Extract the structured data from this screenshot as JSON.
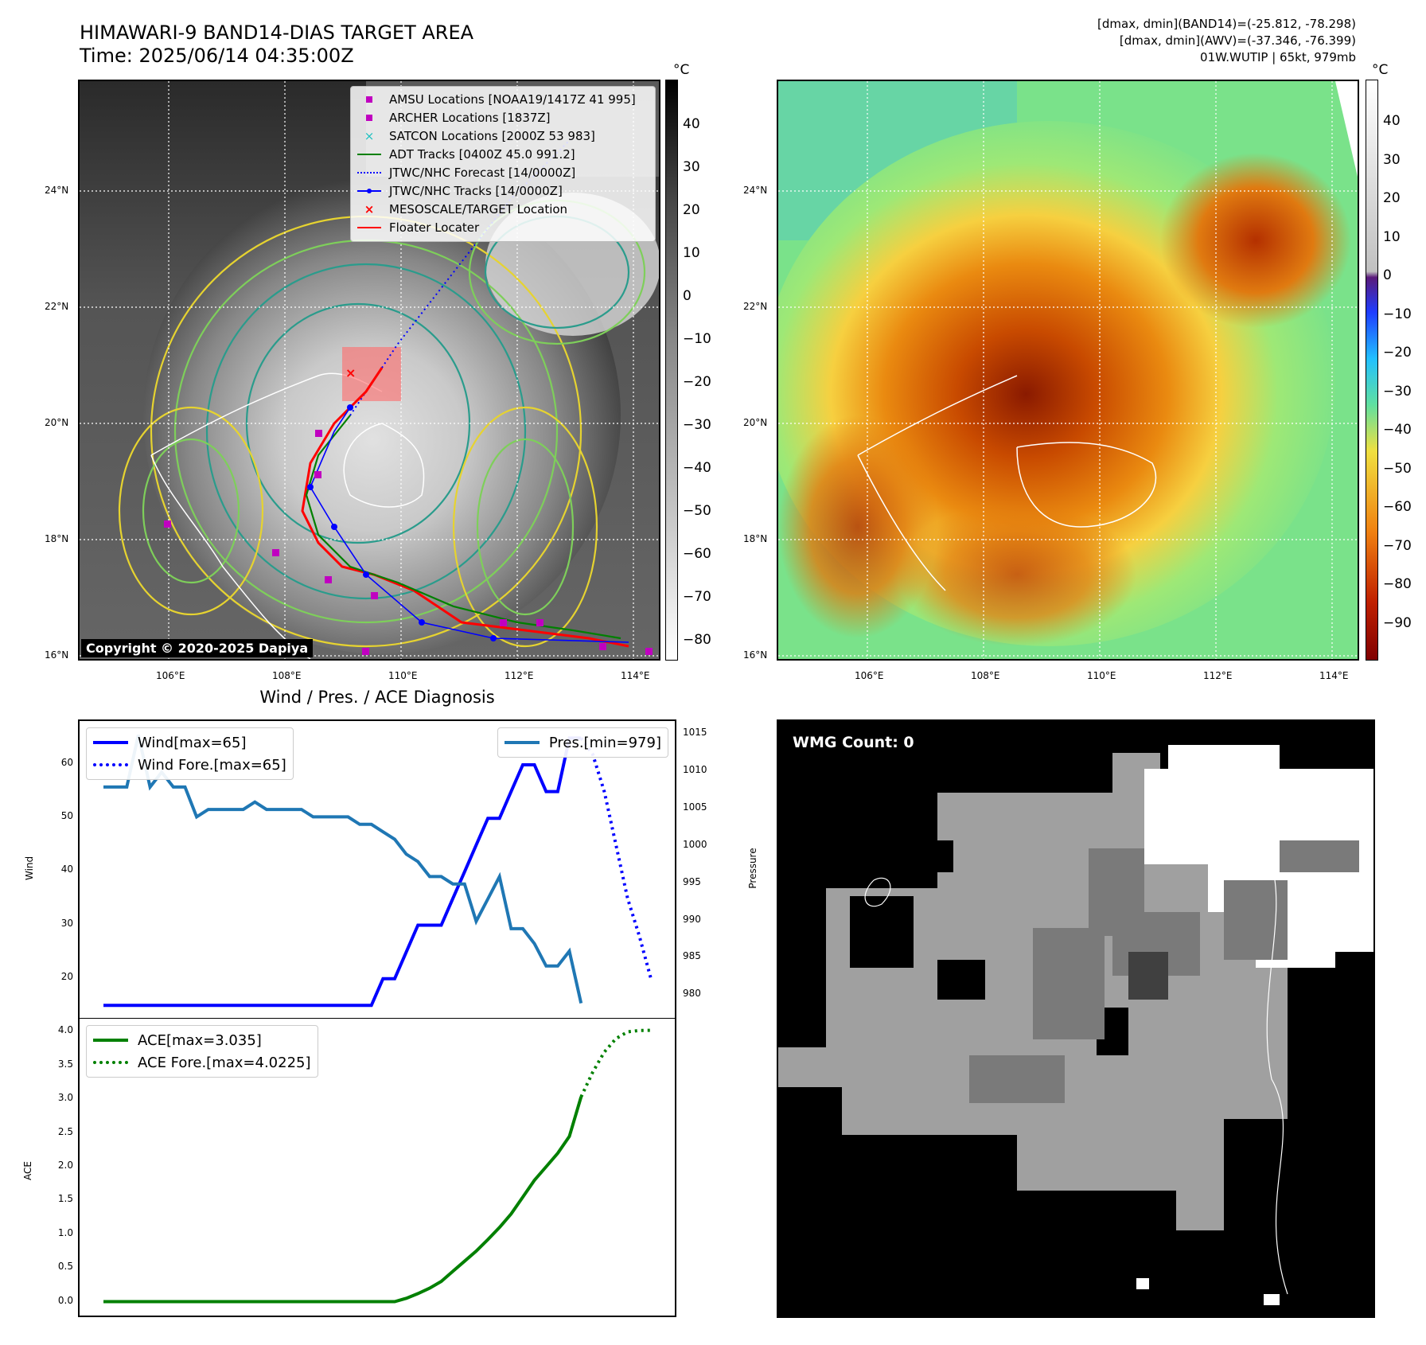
{
  "header": {
    "title_line1": "HIMAWARI-9 BAND14-DIAS TARGET AREA",
    "title_line2": "Time: 2025/06/14 04:35:00Z",
    "note_line1": "[dmax, dmin](BAND14)=(-25.812, -78.298)",
    "note_line2": "[dmax, dmin](AWV)=(-37.346, -76.399)",
    "note_line3": "01W.WUTIP | 65kt, 979mb"
  },
  "map_axes": {
    "lat_ticks": [
      "24°N",
      "22°N",
      "20°N",
      "18°N",
      "16°N"
    ],
    "lon_ticks": [
      "106°E",
      "108°E",
      "110°E",
      "112°E",
      "114°E"
    ]
  },
  "colorbar_ir": {
    "unit": "°C",
    "ticks": [
      "40",
      "30",
      "20",
      "10",
      "0",
      "−10",
      "−20",
      "−30",
      "−40",
      "−50",
      "−60",
      "−70",
      "−80"
    ]
  },
  "colorbar_color": {
    "unit": "°C",
    "ticks": [
      "40",
      "30",
      "20",
      "10",
      "0",
      "−10",
      "−20",
      "−30",
      "−40",
      "−50",
      "−60",
      "−70",
      "−80",
      "−90"
    ]
  },
  "map_legend": [
    {
      "label": "AMSU Locations [NOAA19/1417Z 41 995]",
      "color": "#c000c0",
      "icon": "square-marker"
    },
    {
      "label": "ARCHER Locations [1837Z]",
      "color": "#c000c0",
      "icon": "square-marker"
    },
    {
      "label": "SATCON Locations [2000Z 53 983]",
      "color": "#20c0c0",
      "icon": "x-marker"
    },
    {
      "label": "ADT Tracks [0400Z 45.0 991.2]",
      "color": "#008000",
      "icon": "solid-line"
    },
    {
      "label": "JTWC/NHC Forecast [14/0000Z]",
      "color": "#0000ff",
      "icon": "dotted-line"
    },
    {
      "label": "JTWC/NHC Tracks [14/0000Z]",
      "color": "#0000ff",
      "icon": "line-dot"
    },
    {
      "label": "MESOSCALE/TARGET Location",
      "color": "#ff0000",
      "icon": "x-marker"
    },
    {
      "label": "Floater Locater",
      "color": "#ff0000",
      "icon": "solid-line"
    }
  ],
  "copyright": "Copyright © 2020-2025 Dapiya",
  "diagnosis": {
    "title": "Wind / Pres. / ACE Diagnosis",
    "wind_ylabel": "Wind",
    "pres_ylabel": "Pressure",
    "ace_ylabel": "ACE",
    "legend_wind": "Wind[max=65]",
    "legend_wind_fore": "Wind Fore.[max=65]",
    "legend_pres": "Pres.[min=979]",
    "legend_ace": "ACE[max=3.035]",
    "legend_ace_fore": "ACE Fore.[max=4.0225]",
    "wind_ticks": [
      "60",
      "50",
      "40",
      "30",
      "20"
    ],
    "pres_ticks": [
      "1015",
      "1010",
      "1005",
      "1000",
      "995",
      "990",
      "985",
      "980"
    ],
    "ace_ticks": [
      "4.0",
      "3.5",
      "3.0",
      "2.5",
      "2.0",
      "1.5",
      "1.0",
      "0.5",
      "0.0"
    ]
  },
  "wmg": {
    "label": "WMG Count: 0"
  },
  "chart_data": [
    {
      "type": "line",
      "title": "Wind / Pres. / ACE Diagnosis",
      "ylabel": "Wind",
      "ylim": [
        14,
        67
      ],
      "x": [
        0,
        1,
        2,
        3,
        4,
        5,
        6,
        7,
        8,
        9,
        10,
        11,
        12,
        13,
        14,
        15,
        16,
        17,
        18,
        19,
        20,
        21,
        22,
        23,
        24,
        25,
        26,
        27,
        28,
        29,
        30,
        31,
        32,
        33,
        34,
        35,
        36,
        37,
        38,
        39,
        40,
        41,
        42,
        43,
        44,
        45,
        46,
        47
      ],
      "series": [
        {
          "name": "Wind[max=65]",
          "color": "#0000ff",
          "style": "solid",
          "x": [
            0,
            1,
            2,
            3,
            4,
            5,
            6,
            7,
            8,
            9,
            10,
            11,
            12,
            13,
            14,
            15,
            16,
            17,
            18,
            19,
            20,
            21,
            22,
            23,
            24,
            25,
            26,
            27,
            28,
            29,
            30,
            31,
            32,
            33,
            34,
            35,
            36,
            37,
            38,
            39,
            40,
            41
          ],
          "values": [
            15,
            15,
            15,
            15,
            15,
            15,
            15,
            15,
            15,
            15,
            15,
            15,
            15,
            15,
            15,
            15,
            15,
            15,
            15,
            15,
            15,
            15,
            15,
            15,
            20,
            20,
            25,
            30,
            30,
            30,
            35,
            40,
            45,
            50,
            50,
            55,
            60,
            60,
            55,
            55,
            65,
            65
          ]
        },
        {
          "name": "Wind Fore.[max=65]",
          "color": "#0000ff",
          "style": "dotted",
          "x": [
            41,
            42,
            43,
            44,
            45,
            46,
            47
          ],
          "values": [
            65,
            62,
            55,
            45,
            35,
            28,
            20
          ]
        },
        {
          "name": "Pres.[min=979]",
          "color": "#1f77b4",
          "style": "solid",
          "axis": "right",
          "ylim": [
            978,
            1016
          ],
          "x": [
            0,
            1,
            2,
            3,
            4,
            5,
            6,
            7,
            8,
            9,
            10,
            11,
            12,
            13,
            14,
            15,
            16,
            17,
            18,
            19,
            20,
            21,
            22,
            23,
            24,
            25,
            26,
            27,
            28,
            29,
            30,
            31,
            32,
            33,
            34,
            35,
            36,
            37,
            38,
            39,
            40,
            41
          ],
          "values": [
            1008,
            1008,
            1008,
            1015,
            1008,
            1010,
            1008,
            1008,
            1004,
            1005,
            1005,
            1005,
            1005,
            1006,
            1005,
            1005,
            1005,
            1005,
            1004,
            1004,
            1004,
            1004,
            1003,
            1003,
            1002,
            1001,
            999,
            998,
            996,
            996,
            995,
            995,
            990,
            993,
            996,
            989,
            989,
            987,
            984,
            984,
            986,
            979
          ]
        }
      ]
    },
    {
      "type": "line",
      "ylabel": "ACE",
      "ylim": [
        -0.1,
        4.1
      ],
      "series": [
        {
          "name": "ACE[max=3.035]",
          "color": "#008000",
          "style": "solid",
          "x": [
            0,
            5,
            10,
            15,
            20,
            25,
            26,
            27,
            28,
            29,
            30,
            31,
            32,
            33,
            34,
            35,
            36,
            37,
            38,
            39,
            40,
            41
          ],
          "values": [
            0,
            0,
            0,
            0,
            0,
            0,
            0.05,
            0.12,
            0.2,
            0.3,
            0.45,
            0.6,
            0.75,
            0.92,
            1.1,
            1.3,
            1.55,
            1.8,
            2.0,
            2.2,
            2.45,
            3.035
          ]
        },
        {
          "name": "ACE Fore.[max=4.0225]",
          "color": "#008000",
          "style": "dotted",
          "x": [
            41,
            42,
            43,
            44,
            45,
            46,
            47
          ],
          "values": [
            3.035,
            3.4,
            3.7,
            3.9,
            4.0,
            4.02,
            4.0225
          ]
        }
      ]
    }
  ]
}
